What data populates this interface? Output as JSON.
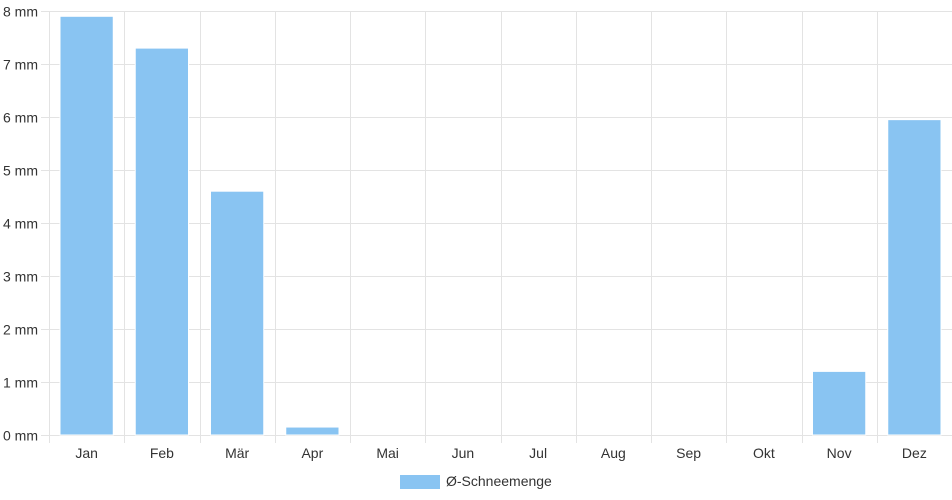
{
  "chart_data": {
    "type": "bar",
    "categories": [
      "Jan",
      "Feb",
      "Mär",
      "Apr",
      "Mai",
      "Jun",
      "Jul",
      "Aug",
      "Sep",
      "Okt",
      "Nov",
      "Dez"
    ],
    "series": [
      {
        "name": "Ø-Schneemenge",
        "values": [
          7.9,
          7.3,
          4.6,
          0.15,
          0,
          0,
          0,
          0,
          0,
          0,
          1.2,
          5.95
        ],
        "color": "#89c4f2"
      }
    ],
    "unit": "mm",
    "y_ticks": [
      "0 mm",
      "1 mm",
      "2 mm",
      "3 mm",
      "4 mm",
      "5 mm",
      "6 mm",
      "7 mm",
      "8 mm"
    ],
    "ylim": [
      0,
      8
    ],
    "grid": true,
    "legend_position": "bottom",
    "gridline_color": "#e3e3e3"
  }
}
